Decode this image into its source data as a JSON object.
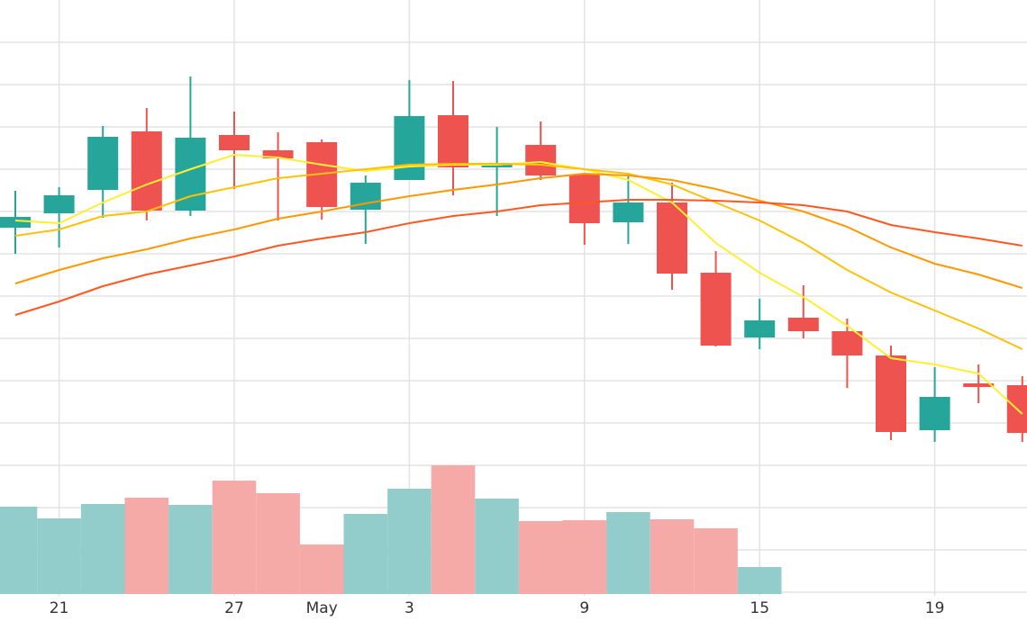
{
  "chart_data": {
    "type": "candlestick",
    "categories": [
      null,
      "21",
      null,
      null,
      null,
      "27",
      null,
      "May",
      null,
      "3",
      null,
      null,
      null,
      "9",
      null,
      null,
      null,
      "15",
      null,
      null,
      null,
      "19",
      null,
      null
    ],
    "open": [
      30.7,
      32.3,
      34.9,
      41.4,
      32.6,
      41.0,
      39.3,
      40.2,
      32.7,
      36.0,
      43.2,
      37.4,
      39.9,
      36.6,
      31.3,
      33.5,
      25.7,
      18.5,
      20.7,
      19.2,
      16.5,
      8.2,
      13.4,
      13.2
    ],
    "high": [
      34.8,
      35.2,
      42.0,
      44.0,
      47.5,
      43.6,
      41.3,
      40.5,
      36.5,
      47.1,
      47.0,
      41.9,
      42.5,
      36.7,
      36.8,
      35.7,
      28.1,
      22.8,
      24.3,
      20.6,
      17.6,
      15.2,
      15.5,
      14.2
    ],
    "low": [
      27.8,
      28.5,
      31.8,
      31.5,
      32.0,
      35.0,
      31.5,
      31.6,
      28.9,
      36.0,
      34.3,
      32.0,
      36.0,
      28.8,
      28.9,
      23.8,
      17.5,
      17.2,
      18.4,
      12.9,
      7.1,
      6.9,
      11.2,
      6.9
    ],
    "close": [
      31.9,
      34.3,
      40.8,
      32.6,
      40.7,
      39.3,
      38.4,
      33.0,
      35.7,
      43.1,
      37.4,
      37.9,
      36.5,
      31.2,
      33.5,
      25.6,
      17.6,
      20.4,
      19.2,
      16.5,
      8.0,
      11.9,
      13.0,
      7.9
    ],
    "volume": [
      9.7,
      8.4,
      10.0,
      10.7,
      9.9,
      12.6,
      11.2,
      5.5,
      8.9,
      11.7,
      14.3,
      10.6,
      8.1,
      8.2,
      9.1,
      8.3,
      7.3,
      3.0,
      null,
      null,
      null,
      null,
      null,
      null
    ],
    "up_color": "#26a69a",
    "down_color": "#ef5350",
    "volume_up_color": "#92cdcc",
    "volume_down_color": "#f5aaa7",
    "moving_averages": [
      {
        "color": "#ffee33",
        "values": [
          31.5,
          31.2,
          33.5,
          35.5,
          37.2,
          38.8,
          38.5,
          37.7,
          37.0,
          37.5,
          37.7,
          37.7,
          38.0,
          37.2,
          36.0,
          33.5,
          29.0,
          25.7,
          23.0,
          19.8,
          16.2,
          15.5,
          14.5,
          10.0
        ]
      },
      {
        "color": "#ffc107",
        "values": [
          29.8,
          30.5,
          32.0,
          32.5,
          34.2,
          35.2,
          36.2,
          36.7,
          37.2,
          37.7,
          37.8,
          37.8,
          37.7,
          37.2,
          36.7,
          35.5,
          33.5,
          31.5,
          29.0,
          26.0,
          23.5,
          21.5,
          19.5,
          17.2
        ]
      },
      {
        "color": "#ff9800",
        "values": [
          24.5,
          26.0,
          27.3,
          28.3,
          29.5,
          30.5,
          31.7,
          32.5,
          33.4,
          34.2,
          34.9,
          35.5,
          36.2,
          36.7,
          36.5,
          36.0,
          35.0,
          33.7,
          32.5,
          30.8,
          28.5,
          26.7,
          25.5,
          24.0
        ]
      },
      {
        "color": "#ff5722",
        "values": [
          21.0,
          22.5,
          24.2,
          25.5,
          26.5,
          27.5,
          28.7,
          29.5,
          30.2,
          31.2,
          32.0,
          32.5,
          33.2,
          33.5,
          33.8,
          33.8,
          33.7,
          33.5,
          33.2,
          32.5,
          31.0,
          30.2,
          29.5,
          28.7
        ]
      }
    ],
    "ylim": [
      5,
      56
    ],
    "vlim": [
      0,
      20
    ],
    "grid": true
  }
}
